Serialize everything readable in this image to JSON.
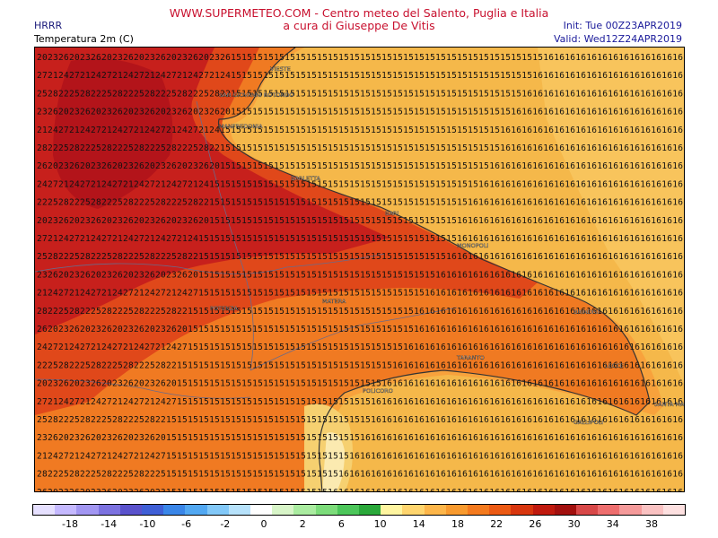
{
  "header": {
    "title": "WWW.SUPERMETEO.COM - Centro meteo del Salento, Puglia e Italia",
    "subtitle": "a cura di Giuseppe De Vitis",
    "model": "HRRR",
    "parameter": "Temperatura 2m (C)",
    "init": "Init: Tue 00Z23APR2019",
    "valid": "Valid: Wed12Z24APR2019"
  },
  "cities": [
    "VIESTE",
    "SAN GIOVANNI ROTONDO",
    "MANFREDONIA",
    "BARLETTA",
    "BARI",
    "MONOPOLI",
    "BRINDISI",
    "POTENZA",
    "MATERA",
    "TARANTO",
    "LECCE",
    "POLICORO",
    "SANTA MARIA DI LEUCA",
    "GALLIPOLI"
  ],
  "colors": {
    "title": "#c8102e",
    "info": "#1a1a9a",
    "sea_15": "#f5b84a",
    "sea_16": "#f8c45c"
  },
  "colorbar": {
    "colors": [
      "#e6e0ff",
      "#c5b9ff",
      "#a296f2",
      "#7c72e0",
      "#5a52cc",
      "#3f5fd6",
      "#3a86e8",
      "#52a8f2",
      "#82c8f8",
      "#b7e2fb",
      "#ffffff",
      "#d8f5c8",
      "#aaeca0",
      "#7cdc7a",
      "#4cc65a",
      "#2aa83a",
      "#fff5a0",
      "#ffd56e",
      "#fdb64a",
      "#f89a2e",
      "#f47a1e",
      "#ec5a14",
      "#d8360e",
      "#c01a0e",
      "#a2100e",
      "#d84848",
      "#ee6e6e",
      "#f59a9a",
      "#fac2c2",
      "#fde0e0"
    ],
    "ticks": [
      "-18",
      "-14",
      "-10",
      "-6",
      "-2",
      "0",
      "2",
      "6",
      "10",
      "14",
      "18",
      "22",
      "26",
      "30",
      "34",
      "38"
    ]
  }
}
